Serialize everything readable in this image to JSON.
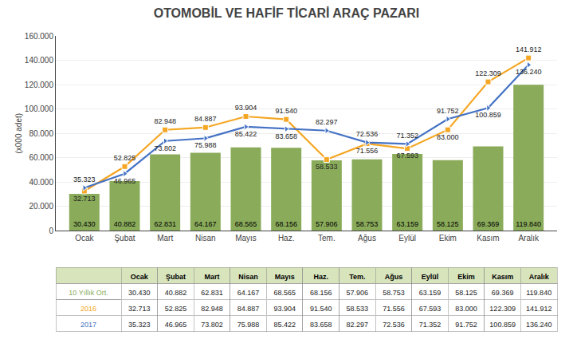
{
  "chart_data": {
    "type": "bar",
    "title": "OTOMOBİL VE HAFİF TİCARİ ARAÇ PAZARI",
    "ylabel": "(x000 adet)",
    "categories": [
      "Ocak",
      "Şubat",
      "Mart",
      "Nisan",
      "Mayıs",
      "Haz.",
      "Tem.",
      "Ağus",
      "Eylül",
      "Ekim",
      "Kasım",
      "Aralık"
    ],
    "series": [
      {
        "name": "10 Yıllık Ort.",
        "type": "bar",
        "color": "#8aab5a",
        "values": [
          30430,
          40882,
          62831,
          64167,
          68565,
          68156,
          57906,
          58753,
          63159,
          58125,
          69369,
          119840
        ],
        "value_labels": [
          "30.430",
          "40.882",
          "62.831",
          "64.167",
          "68.565",
          "68.156",
          "57.906",
          "58.753",
          "63.159",
          "58.125",
          "69.369",
          "119.840"
        ]
      },
      {
        "name": "2016",
        "type": "line",
        "color": "#f5a623",
        "marker": "square",
        "values": [
          32713,
          52825,
          82948,
          84887,
          93904,
          91540,
          58533,
          71556,
          67593,
          83000,
          122309,
          141912
        ],
        "value_labels": [
          "32.713",
          "52.825",
          "82.948",
          "84.887",
          "93.904",
          "91.540",
          "58.533",
          "71.556",
          "67.593",
          "83.000",
          "122.309",
          "141.912"
        ]
      },
      {
        "name": "2017",
        "type": "line",
        "color": "#4472c4",
        "marker": "triangle-right",
        "values": [
          35323,
          46965,
          73802,
          75988,
          85422,
          83658,
          82297,
          72536,
          71352,
          91752,
          100859,
          136240
        ],
        "value_labels": [
          "35.323",
          "46.965",
          "73.802",
          "75.988",
          "85.422",
          "83.658",
          "82.297",
          "72.536",
          "71.352",
          "91.752",
          "100.859",
          "136.240"
        ]
      }
    ],
    "ylim": [
      0,
      160000
    ],
    "yticks": [
      0,
      {
        "value": 20000,
        "label": "20.000"
      },
      {
        "value": 40000,
        "label": "40.000"
      },
      {
        "value": 60000,
        "label": "60.000"
      },
      {
        "value": 80000,
        "label": "80.000"
      },
      {
        "value": 100000,
        "label": "100.000"
      },
      {
        "value": 120000,
        "label": "120.000"
      },
      {
        "value": 140000,
        "label": "140.000"
      },
      {
        "value": 160000,
        "label": "160.000"
      }
    ],
    "grid": true,
    "data_labels": true
  }
}
